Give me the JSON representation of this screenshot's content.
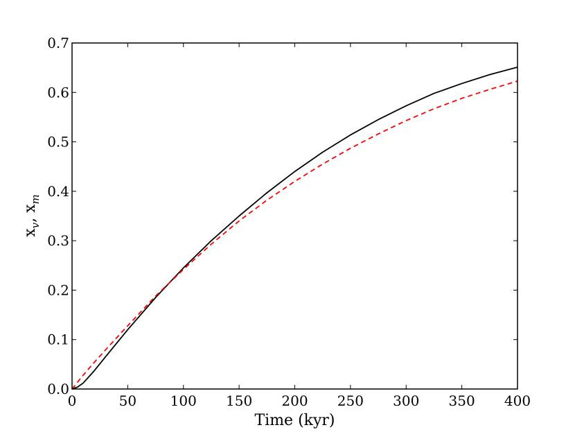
{
  "chart_data": {
    "type": "line",
    "xlabel": "Time (kyr)",
    "ylabel_main": "x",
    "ylabel_sub1": "v",
    "ylabel_sep": ", ",
    "ylabel_main2": "x",
    "ylabel_sub2": "m",
    "xlim": [
      0,
      400
    ],
    "ylim": [
      0,
      0.7
    ],
    "x_ticks": [
      0,
      50,
      100,
      150,
      200,
      250,
      300,
      350,
      400
    ],
    "y_ticks": [
      0.0,
      0.1,
      0.2,
      0.3,
      0.4,
      0.5,
      0.6,
      0.7
    ],
    "grid": false,
    "series": [
      {
        "color": "#000000",
        "style": "solid",
        "x": [
          0,
          5,
          10,
          20,
          30,
          50,
          75,
          100,
          125,
          150,
          175,
          200,
          225,
          250,
          275,
          300,
          325,
          350,
          375,
          400
        ],
        "y": [
          0.0,
          0.004,
          0.012,
          0.037,
          0.065,
          0.12,
          0.185,
          0.245,
          0.3,
          0.35,
          0.397,
          0.44,
          0.479,
          0.514,
          0.545,
          0.573,
          0.598,
          0.618,
          0.636,
          0.651
        ]
      },
      {
        "color": "#ff0000",
        "style": "dashed",
        "x": [
          0,
          5,
          10,
          20,
          30,
          50,
          75,
          100,
          125,
          150,
          175,
          200,
          225,
          250,
          275,
          300,
          325,
          350,
          375,
          400
        ],
        "y": [
          0.0,
          0.014,
          0.028,
          0.054,
          0.079,
          0.128,
          0.188,
          0.242,
          0.293,
          0.34,
          0.382,
          0.42,
          0.455,
          0.487,
          0.516,
          0.543,
          0.567,
          0.588,
          0.606,
          0.623
        ]
      }
    ]
  }
}
